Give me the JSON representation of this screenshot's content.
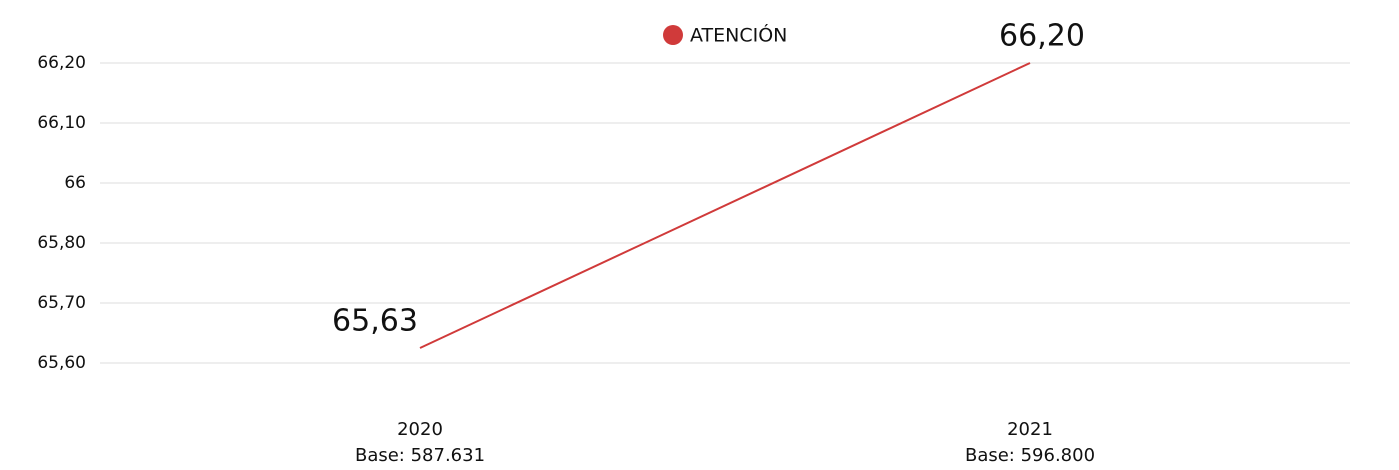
{
  "chart_data": {
    "type": "line",
    "categories": [
      "2020",
      "2021"
    ],
    "category_sublabels": [
      "Base: 587.631",
      "Base: 596.800"
    ],
    "series": [
      {
        "name": "ATENCIÓN",
        "color": "#d03a3a",
        "values": [
          65.63,
          66.2
        ],
        "value_labels": [
          "65,63",
          "66,20"
        ]
      }
    ],
    "ylim": [
      65.54,
      66.26
    ],
    "yticks": [
      {
        "value": 65.6,
        "label": "65,60"
      },
      {
        "value": 65.72,
        "label": "65,70"
      },
      {
        "value": 65.84,
        "label": "65,80"
      },
      {
        "value": 65.96,
        "label": "66"
      },
      {
        "value": 66.08,
        "label": "66,10"
      },
      {
        "value": 66.2,
        "label": "66,20"
      }
    ],
    "grid": true,
    "legend": "top"
  }
}
